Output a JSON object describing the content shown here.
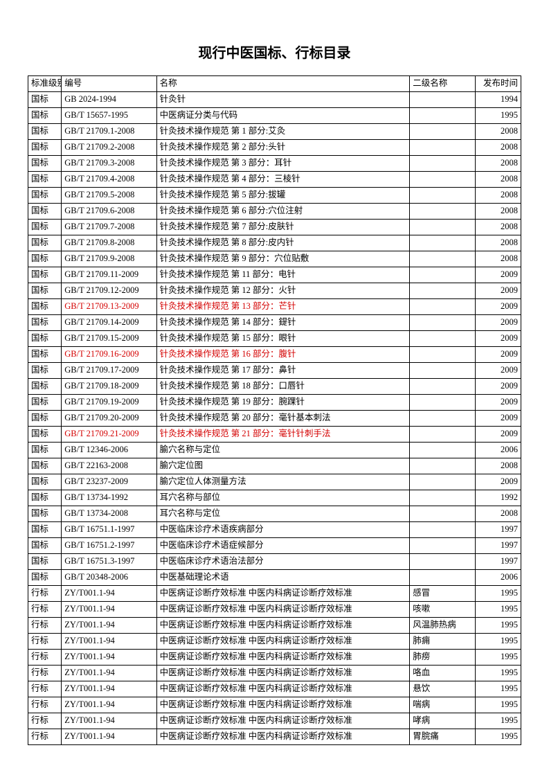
{
  "title": "现行中医国标、行标目录",
  "headers": {
    "level": "标准级别",
    "code": "编号",
    "name": "名称",
    "sub": "二级名称",
    "year": "发布时间"
  },
  "rows": [
    {
      "level": "国标",
      "code": "GB 2024-1994",
      "name": "针灸针",
      "sub": "",
      "year": "1994",
      "red": false
    },
    {
      "level": "国标",
      "code": "GB/T 15657-1995",
      "name": "中医病证分类与代码",
      "sub": "",
      "year": "1995",
      "red": false
    },
    {
      "level": "国标",
      "code": "GB/T 21709.1-2008",
      "name": "针灸技术操作规范  第 1 部分:艾灸",
      "sub": "",
      "year": "2008",
      "red": false
    },
    {
      "level": "国标",
      "code": "GB/T 21709.2-2008",
      "name": "针灸技术操作规范  第 2 部分:头针",
      "sub": "",
      "year": "2008",
      "red": false
    },
    {
      "level": "国标",
      "code": "GB/T 21709.3-2008",
      "name": "针灸技术操作规范  第 3 部分：耳针",
      "sub": "",
      "year": "2008",
      "red": false
    },
    {
      "level": "国标",
      "code": "GB/T 21709.4-2008",
      "name": "针灸技术操作规范  第 4 部分：三棱针",
      "sub": "",
      "year": "2008",
      "red": false
    },
    {
      "level": "国标",
      "code": "GB/T 21709.5-2008",
      "name": "针灸技术操作规范  第 5 部分:拔罐",
      "sub": "",
      "year": "2008",
      "red": false
    },
    {
      "level": "国标",
      "code": "GB/T 21709.6-2008",
      "name": "针灸技术操作规范  第 6 部分:穴位注射",
      "sub": "",
      "year": "2008",
      "red": false
    },
    {
      "level": "国标",
      "code": "GB/T 21709.7-2008",
      "name": "针灸技术操作规范  第 7 部分:皮肤针",
      "sub": "",
      "year": "2008",
      "red": false
    },
    {
      "level": "国标",
      "code": "GB/T 21709.8-2008",
      "name": "针灸技术操作规范  第 8 部分:皮内针",
      "sub": "",
      "year": "2008",
      "red": false
    },
    {
      "level": "国标",
      "code": "GB/T 21709.9-2008",
      "name": "针灸技术操作规范  第 9 部分：穴位贴敷",
      "sub": "",
      "year": "2008",
      "red": false
    },
    {
      "level": "国标",
      "code": "GB/T 21709.11-2009",
      "name": "针灸技术操作规范  第 11 部分：电针",
      "sub": "",
      "year": "2009",
      "red": false
    },
    {
      "level": "国标",
      "code": "GB/T 21709.12-2009",
      "name": "针灸技术操作规范  第 12 部分：火针",
      "sub": "",
      "year": "2009",
      "red": false
    },
    {
      "level": "国标",
      "code": "GB/T 21709.13-2009",
      "name": "针灸技术操作规范  第 13 部分：芒针",
      "sub": "",
      "year": "2009",
      "red": true
    },
    {
      "level": "国标",
      "code": "GB/T 21709.14-2009",
      "name": "针灸技术操作规范  第 14 部分：鍉针",
      "sub": "",
      "year": "2009",
      "red": false
    },
    {
      "level": "国标",
      "code": "GB/T 21709.15-2009",
      "name": "针灸技术操作规范  第 15 部分：眼针",
      "sub": "",
      "year": "2009",
      "red": false
    },
    {
      "level": "国标",
      "code": "GB/T 21709.16-2009",
      "name": "针灸技术操作规范  第 16 部分：腹针",
      "sub": "",
      "year": "2009",
      "red": true
    },
    {
      "level": "国标",
      "code": "GB/T 21709.17-2009",
      "name": "针灸技术操作规范  第 17 部分：鼻针",
      "sub": "",
      "year": "2009",
      "red": false
    },
    {
      "level": "国标",
      "code": "GB/T 21709.18-2009",
      "name": "针灸技术操作规范  第 18 部分：口唇针",
      "sub": "",
      "year": "2009",
      "red": false
    },
    {
      "level": "国标",
      "code": "GB/T 21709.19-2009",
      "name": "针灸技术操作规范  第 19 部分：腕踝针",
      "sub": "",
      "year": "2009",
      "red": false
    },
    {
      "level": "国标",
      "code": "GB/T 21709.20-2009",
      "name": "针灸技术操作规范  第 20 部分：毫针基本刺法",
      "sub": "",
      "year": "2009",
      "red": false
    },
    {
      "level": "国标",
      "code": "GB/T 21709.21-2009",
      "name": "针灸技术操作规范  第 21 部分：毫针针刺手法",
      "sub": "",
      "year": "2009",
      "red": true
    },
    {
      "level": "国标",
      "code": "GB/T 12346-2006",
      "name": "腧穴名称与定位",
      "sub": "",
      "year": "2006",
      "red": false
    },
    {
      "level": "国标",
      "code": "GB/T 22163-2008",
      "name": "腧穴定位图",
      "sub": "",
      "year": "2008",
      "red": false
    },
    {
      "level": "国标",
      "code": "GB/T 23237-2009",
      "name": "腧穴定位人体测量方法",
      "sub": "",
      "year": "2009",
      "red": false
    },
    {
      "level": "国标",
      "code": "GB/T 13734-1992",
      "name": "耳穴名称与部位",
      "sub": "",
      "year": "1992",
      "red": false
    },
    {
      "level": "国标",
      "code": "GB/T 13734-2008",
      "name": "耳穴名称与定位",
      "sub": "",
      "year": "2008",
      "red": false
    },
    {
      "level": "国标",
      "code": "GB/T 16751.1-1997",
      "name": "中医临床诊疗术语疾病部分",
      "sub": "",
      "year": "1997",
      "red": false
    },
    {
      "level": "国标",
      "code": "GB/T 16751.2-1997",
      "name": "中医临床诊疗术语症候部分",
      "sub": "",
      "year": "1997",
      "red": false
    },
    {
      "level": "国标",
      "code": "GB/T 16751.3-1997",
      "name": "中医临床诊疗术语治法部分",
      "sub": "",
      "year": "1997",
      "red": false
    },
    {
      "level": "国标",
      "code": "GB/T 20348-2006",
      "name": "中医基础理论术语",
      "sub": "",
      "year": "2006",
      "red": false
    },
    {
      "level": "行标",
      "code": "ZY/T001.1-94",
      "name": "中医病证诊断疗效标准   中医内科病证诊断疗效标准",
      "sub": "感冒",
      "year": "1995",
      "red": false
    },
    {
      "level": "行标",
      "code": "ZY/T001.1-94",
      "name": "中医病证诊断疗效标准   中医内科病证诊断疗效标准",
      "sub": "咳嗽",
      "year": "1995",
      "red": false
    },
    {
      "level": "行标",
      "code": "ZY/T001.1-94",
      "name": "中医病证诊断疗效标准   中医内科病证诊断疗效标准",
      "sub": "风温肺热病",
      "year": "1995",
      "red": false
    },
    {
      "level": "行标",
      "code": "ZY/T001.1-94",
      "name": "中医病证诊断疗效标准   中医内科病证诊断疗效标准",
      "sub": "肺痈",
      "year": "1995",
      "red": false
    },
    {
      "level": "行标",
      "code": "ZY/T001.1-94",
      "name": "中医病证诊断疗效标准   中医内科病证诊断疗效标准",
      "sub": "肺痨",
      "year": "1995",
      "red": false
    },
    {
      "level": "行标",
      "code": "ZY/T001.1-94",
      "name": "中医病证诊断疗效标准   中医内科病证诊断疗效标准",
      "sub": "咯血",
      "year": "1995",
      "red": false
    },
    {
      "level": "行标",
      "code": "ZY/T001.1-94",
      "name": "中医病证诊断疗效标准   中医内科病证诊断疗效标准",
      "sub": "悬饮",
      "year": "1995",
      "red": false
    },
    {
      "level": "行标",
      "code": "ZY/T001.1-94",
      "name": "中医病证诊断疗效标准   中医内科病证诊断疗效标准",
      "sub": "喘病",
      "year": "1995",
      "red": false
    },
    {
      "level": "行标",
      "code": "ZY/T001.1-94",
      "name": "中医病证诊断疗效标准   中医内科病证诊断疗效标准",
      "sub": "哮病",
      "year": "1995",
      "red": false
    },
    {
      "level": "行标",
      "code": "ZY/T001.1-94",
      "name": "中医病证诊断疗效标准   中医内科病证诊断疗效标准",
      "sub": "胃脘痛",
      "year": "1995",
      "red": false
    }
  ]
}
